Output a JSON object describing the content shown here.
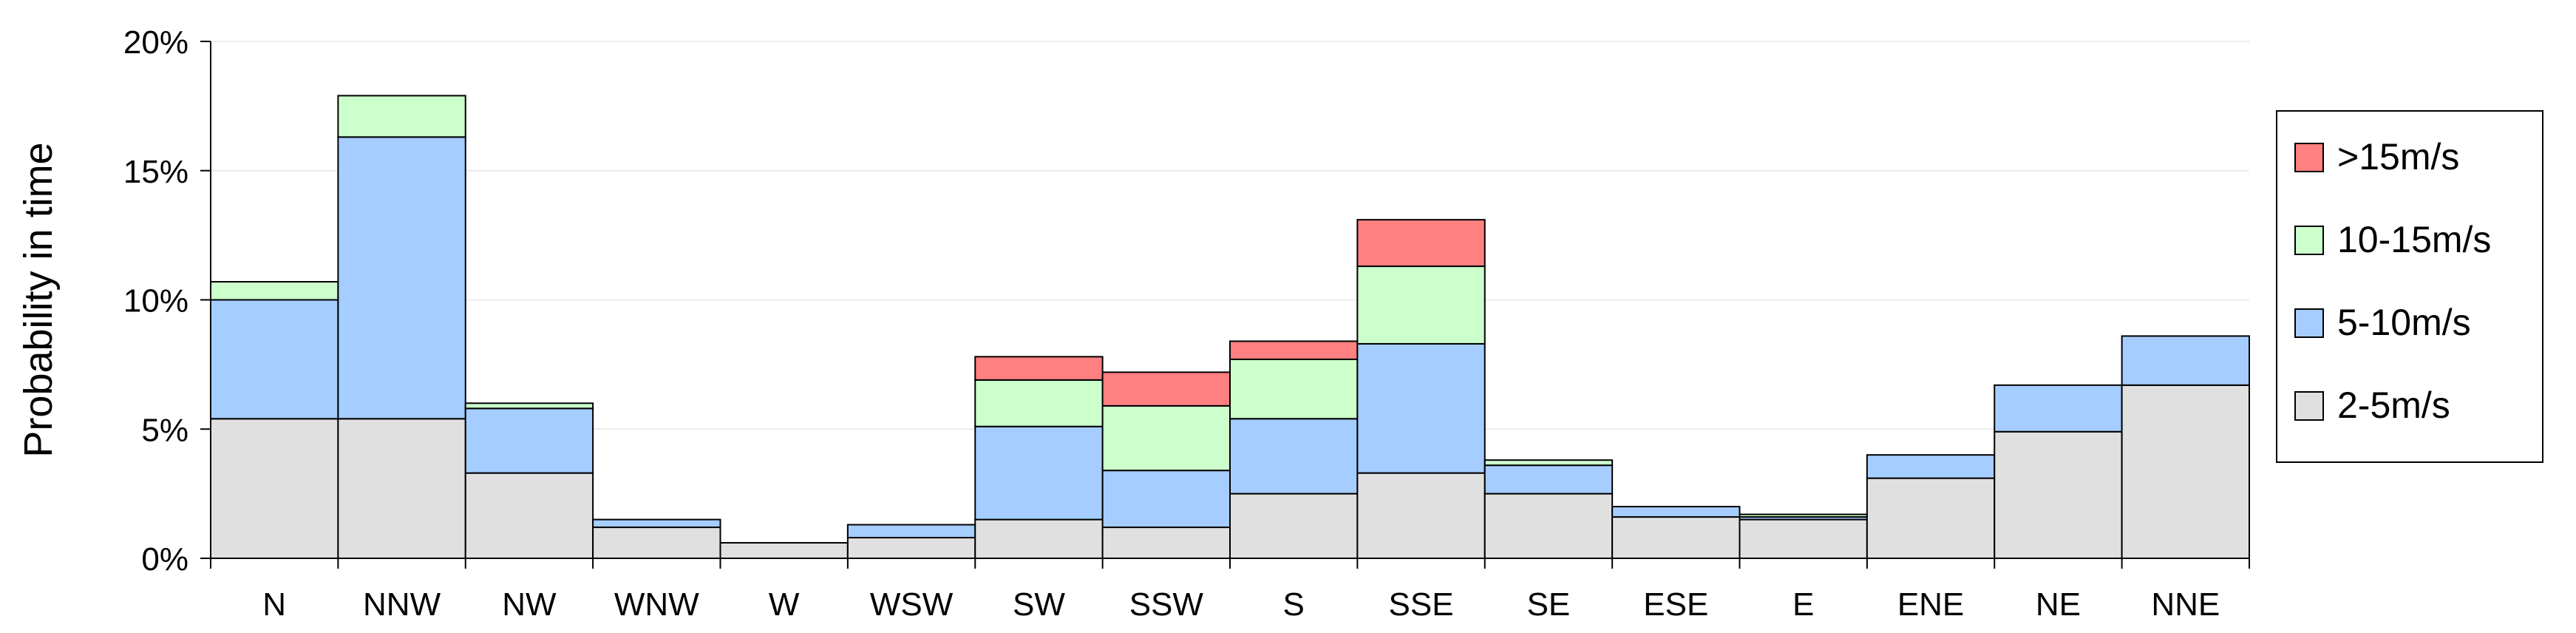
{
  "chart_data": {
    "type": "bar",
    "stacked": true,
    "ylabel": "Probability in time",
    "xlabel": "",
    "ylim": [
      0,
      20
    ],
    "y_ticks": [
      "0%",
      "5%",
      "10%",
      "15%",
      "20%"
    ],
    "y_tick_values": [
      0,
      5,
      10,
      15,
      20
    ],
    "categories": [
      "N",
      "NNW",
      "NW",
      "WNW",
      "W",
      "WSW",
      "SW",
      "SSW",
      "S",
      "SSE",
      "SE",
      "ESE",
      "E",
      "ENE",
      "NE",
      "NNE"
    ],
    "series": [
      {
        "name": "2-5m/s",
        "color": "#e0e0e0",
        "values": [
          5.4,
          5.4,
          3.3,
          1.2,
          0.6,
          0.8,
          1.5,
          1.2,
          2.5,
          3.3,
          2.5,
          1.6,
          1.5,
          3.1,
          4.9,
          6.7
        ]
      },
      {
        "name": "5-10m/s",
        "color": "#a6cdff",
        "values": [
          4.6,
          10.9,
          2.5,
          0.3,
          0.0,
          0.5,
          3.6,
          2.2,
          2.9,
          5.0,
          1.1,
          0.4,
          0.1,
          0.9,
          1.8,
          1.9
        ]
      },
      {
        "name": "10-15m/s",
        "color": "#ccffcc",
        "values": [
          0.7,
          1.6,
          0.2,
          0.0,
          0.0,
          0.0,
          1.8,
          2.5,
          2.3,
          3.0,
          0.2,
          0.0,
          0.1,
          0.0,
          0.0,
          0.0
        ]
      },
      {
        "name": ">15m/s",
        "color": "#ff8080",
        "values": [
          0.0,
          0.0,
          0.0,
          0.0,
          0.0,
          0.0,
          0.9,
          1.3,
          0.7,
          1.8,
          0.0,
          0.0,
          0.0,
          0.0,
          0.0,
          0.0
        ]
      }
    ],
    "legend": {
      "placement": "right",
      "order": [
        ">15m/s",
        "10-15m/s",
        "5-10m/s",
        "2-5m/s"
      ]
    },
    "grid": true
  }
}
